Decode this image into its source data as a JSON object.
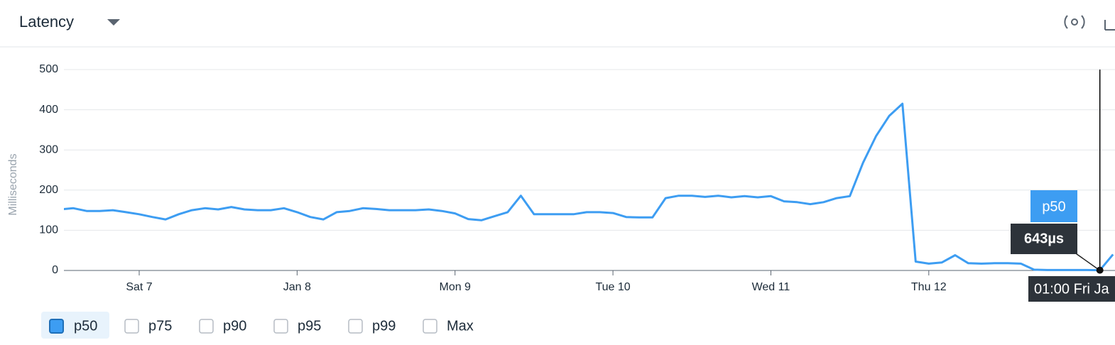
{
  "header": {
    "title": "Latency"
  },
  "chart_data": {
    "type": "line",
    "ylabel": "Milliseconds",
    "categories": [
      null,
      null,
      null,
      null,
      null,
      null,
      "Sat 7",
      null,
      null,
      null,
      null,
      null,
      null,
      null,
      null,
      null,
      null,
      null,
      "Jan 8",
      null,
      null,
      null,
      null,
      null,
      null,
      null,
      null,
      null,
      null,
      null,
      "Mon 9",
      null,
      null,
      null,
      null,
      null,
      null,
      null,
      null,
      null,
      null,
      null,
      "Tue 10",
      null,
      null,
      null,
      null,
      null,
      null,
      null,
      null,
      null,
      null,
      null,
      "Wed 11",
      null,
      null,
      null,
      null,
      null,
      null,
      null,
      null,
      null,
      null,
      null,
      "Thu 12",
      null,
      null,
      null,
      null,
      null,
      null,
      null,
      null,
      null,
      null,
      null,
      null,
      null,
      null
    ],
    "series": [
      {
        "name": "p50",
        "color": "#3d9df2",
        "checked": true,
        "values": [
          152,
          155,
          148,
          148,
          150,
          145,
          140,
          133,
          127,
          140,
          150,
          155,
          152,
          158,
          152,
          150,
          150,
          155,
          145,
          133,
          127,
          145,
          148,
          155,
          153,
          150,
          150,
          150,
          152,
          148,
          142,
          128,
          125,
          135,
          145,
          186,
          140,
          140,
          140,
          140,
          145,
          145,
          143,
          133,
          132,
          132,
          180,
          186,
          186,
          183,
          186,
          182,
          185,
          182,
          185,
          172,
          170,
          165,
          170,
          180,
          185,
          268,
          335,
          385,
          415,
          22,
          17,
          20,
          38,
          18,
          17,
          18,
          18,
          17,
          2,
          1,
          1,
          1,
          1,
          0.643,
          40
        ]
      }
    ],
    "other_metrics": [
      "p75",
      "p90",
      "p95",
      "p99",
      "Max"
    ],
    "ylim": [
      0,
      500
    ],
    "yticks": [
      0,
      100,
      200,
      300,
      400,
      500
    ],
    "grid": true,
    "tooltip": {
      "value": 0.643,
      "label": "643µs",
      "time": "01:00 Fri Ja"
    }
  }
}
